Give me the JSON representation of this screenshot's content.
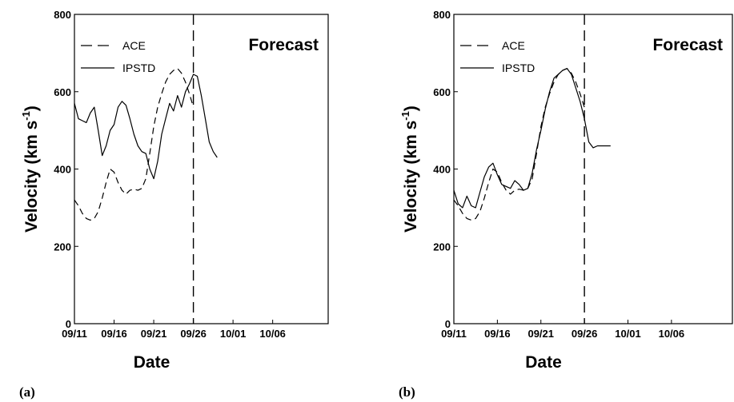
{
  "chart_data": [
    {
      "type": "line",
      "panel_label": "(a)",
      "annotation": "Forecast",
      "xlabel": "Date",
      "ylabel": "Velocity (km s",
      "ylabel_sup": "-1",
      "ylabel_close": ")",
      "ylim": [
        0,
        800
      ],
      "yticks": [
        "0",
        "200",
        "400",
        "600",
        "800"
      ],
      "xlim": [
        0,
        32
      ],
      "xticks": [
        "09/11",
        "09/16",
        "09/21",
        "09/26",
        "10/01",
        "10/06"
      ],
      "xtick_positions": [
        0,
        5,
        10,
        15,
        20,
        25
      ],
      "forecast_x": 15,
      "series": [
        {
          "name": "ACE",
          "style": "dashed",
          "x": [
            0,
            0.5,
            1,
            1.5,
            2,
            2.5,
            3,
            3.5,
            4,
            4.5,
            5,
            5.5,
            6,
            6.5,
            7,
            7.5,
            8,
            8.5,
            9,
            9.5,
            10,
            10.5,
            11,
            11.5,
            12,
            12.5,
            13,
            13.5,
            14,
            14.5,
            15
          ],
          "values": [
            320,
            305,
            285,
            272,
            268,
            272,
            290,
            325,
            365,
            400,
            392,
            365,
            345,
            335,
            345,
            348,
            345,
            350,
            375,
            440,
            510,
            560,
            595,
            625,
            645,
            655,
            660,
            648,
            625,
            595,
            560
          ]
        },
        {
          "name": "IPSTD",
          "style": "solid",
          "x": [
            0,
            0.5,
            1,
            1.5,
            2,
            2.5,
            3,
            3.5,
            4,
            4.5,
            5,
            5.5,
            6,
            6.5,
            7,
            7.5,
            8,
            8.5,
            9,
            9.5,
            10,
            10.5,
            11,
            11.5,
            12,
            12.5,
            13,
            13.5,
            14,
            14.5,
            15,
            15.5,
            16,
            16.5,
            17,
            17.5,
            18
          ],
          "values": [
            570,
            530,
            525,
            520,
            545,
            560,
            500,
            435,
            460,
            500,
            515,
            560,
            575,
            565,
            530,
            490,
            460,
            445,
            440,
            400,
            375,
            420,
            490,
            530,
            570,
            550,
            590,
            560,
            600,
            620,
            645,
            640,
            590,
            530,
            470,
            445,
            430
          ]
        }
      ]
    },
    {
      "type": "line",
      "panel_label": "(b)",
      "annotation": "Forecast",
      "xlabel": "Date",
      "ylabel": "Velocity (km s",
      "ylabel_sup": "-1",
      "ylabel_close": ")",
      "ylim": [
        0,
        800
      ],
      "yticks": [
        "0",
        "200",
        "400",
        "600",
        "800"
      ],
      "xlim": [
        0,
        32
      ],
      "xticks": [
        "09/11",
        "09/16",
        "09/21",
        "09/26",
        "10/01",
        "10/06"
      ],
      "xtick_positions": [
        0,
        5,
        10,
        15,
        20,
        25
      ],
      "forecast_x": 15,
      "series": [
        {
          "name": "ACE",
          "style": "dashed",
          "x": [
            0,
            0.5,
            1,
            1.5,
            2,
            2.5,
            3,
            3.5,
            4,
            4.5,
            5,
            5.5,
            6,
            6.5,
            7,
            7.5,
            8,
            8.5,
            9,
            9.5,
            10,
            10.5,
            11,
            11.5,
            12,
            12.5,
            13,
            13.5,
            14,
            14.5,
            15
          ],
          "values": [
            320,
            305,
            285,
            272,
            268,
            272,
            290,
            325,
            365,
            400,
            392,
            365,
            345,
            335,
            345,
            348,
            345,
            350,
            375,
            440,
            510,
            560,
            595,
            625,
            645,
            655,
            660,
            648,
            625,
            595,
            560
          ]
        },
        {
          "name": "IPSTD",
          "style": "solid",
          "x": [
            0,
            0.5,
            1,
            1.5,
            2,
            2.5,
            3,
            3.5,
            4,
            4.5,
            5,
            5.5,
            6,
            6.5,
            7,
            7.5,
            8,
            8.5,
            9,
            9.5,
            10,
            10.5,
            11,
            11.5,
            12,
            12.5,
            13,
            13.5,
            14,
            14.5,
            15,
            15.5,
            16,
            16.5,
            17,
            17.5,
            18
          ],
          "values": [
            345,
            310,
            300,
            330,
            305,
            300,
            340,
            380,
            405,
            415,
            385,
            360,
            355,
            350,
            370,
            360,
            345,
            350,
            390,
            450,
            500,
            555,
            600,
            635,
            645,
            655,
            660,
            645,
            610,
            575,
            530,
            470,
            455,
            460,
            460,
            460,
            460
          ]
        }
      ]
    }
  ]
}
